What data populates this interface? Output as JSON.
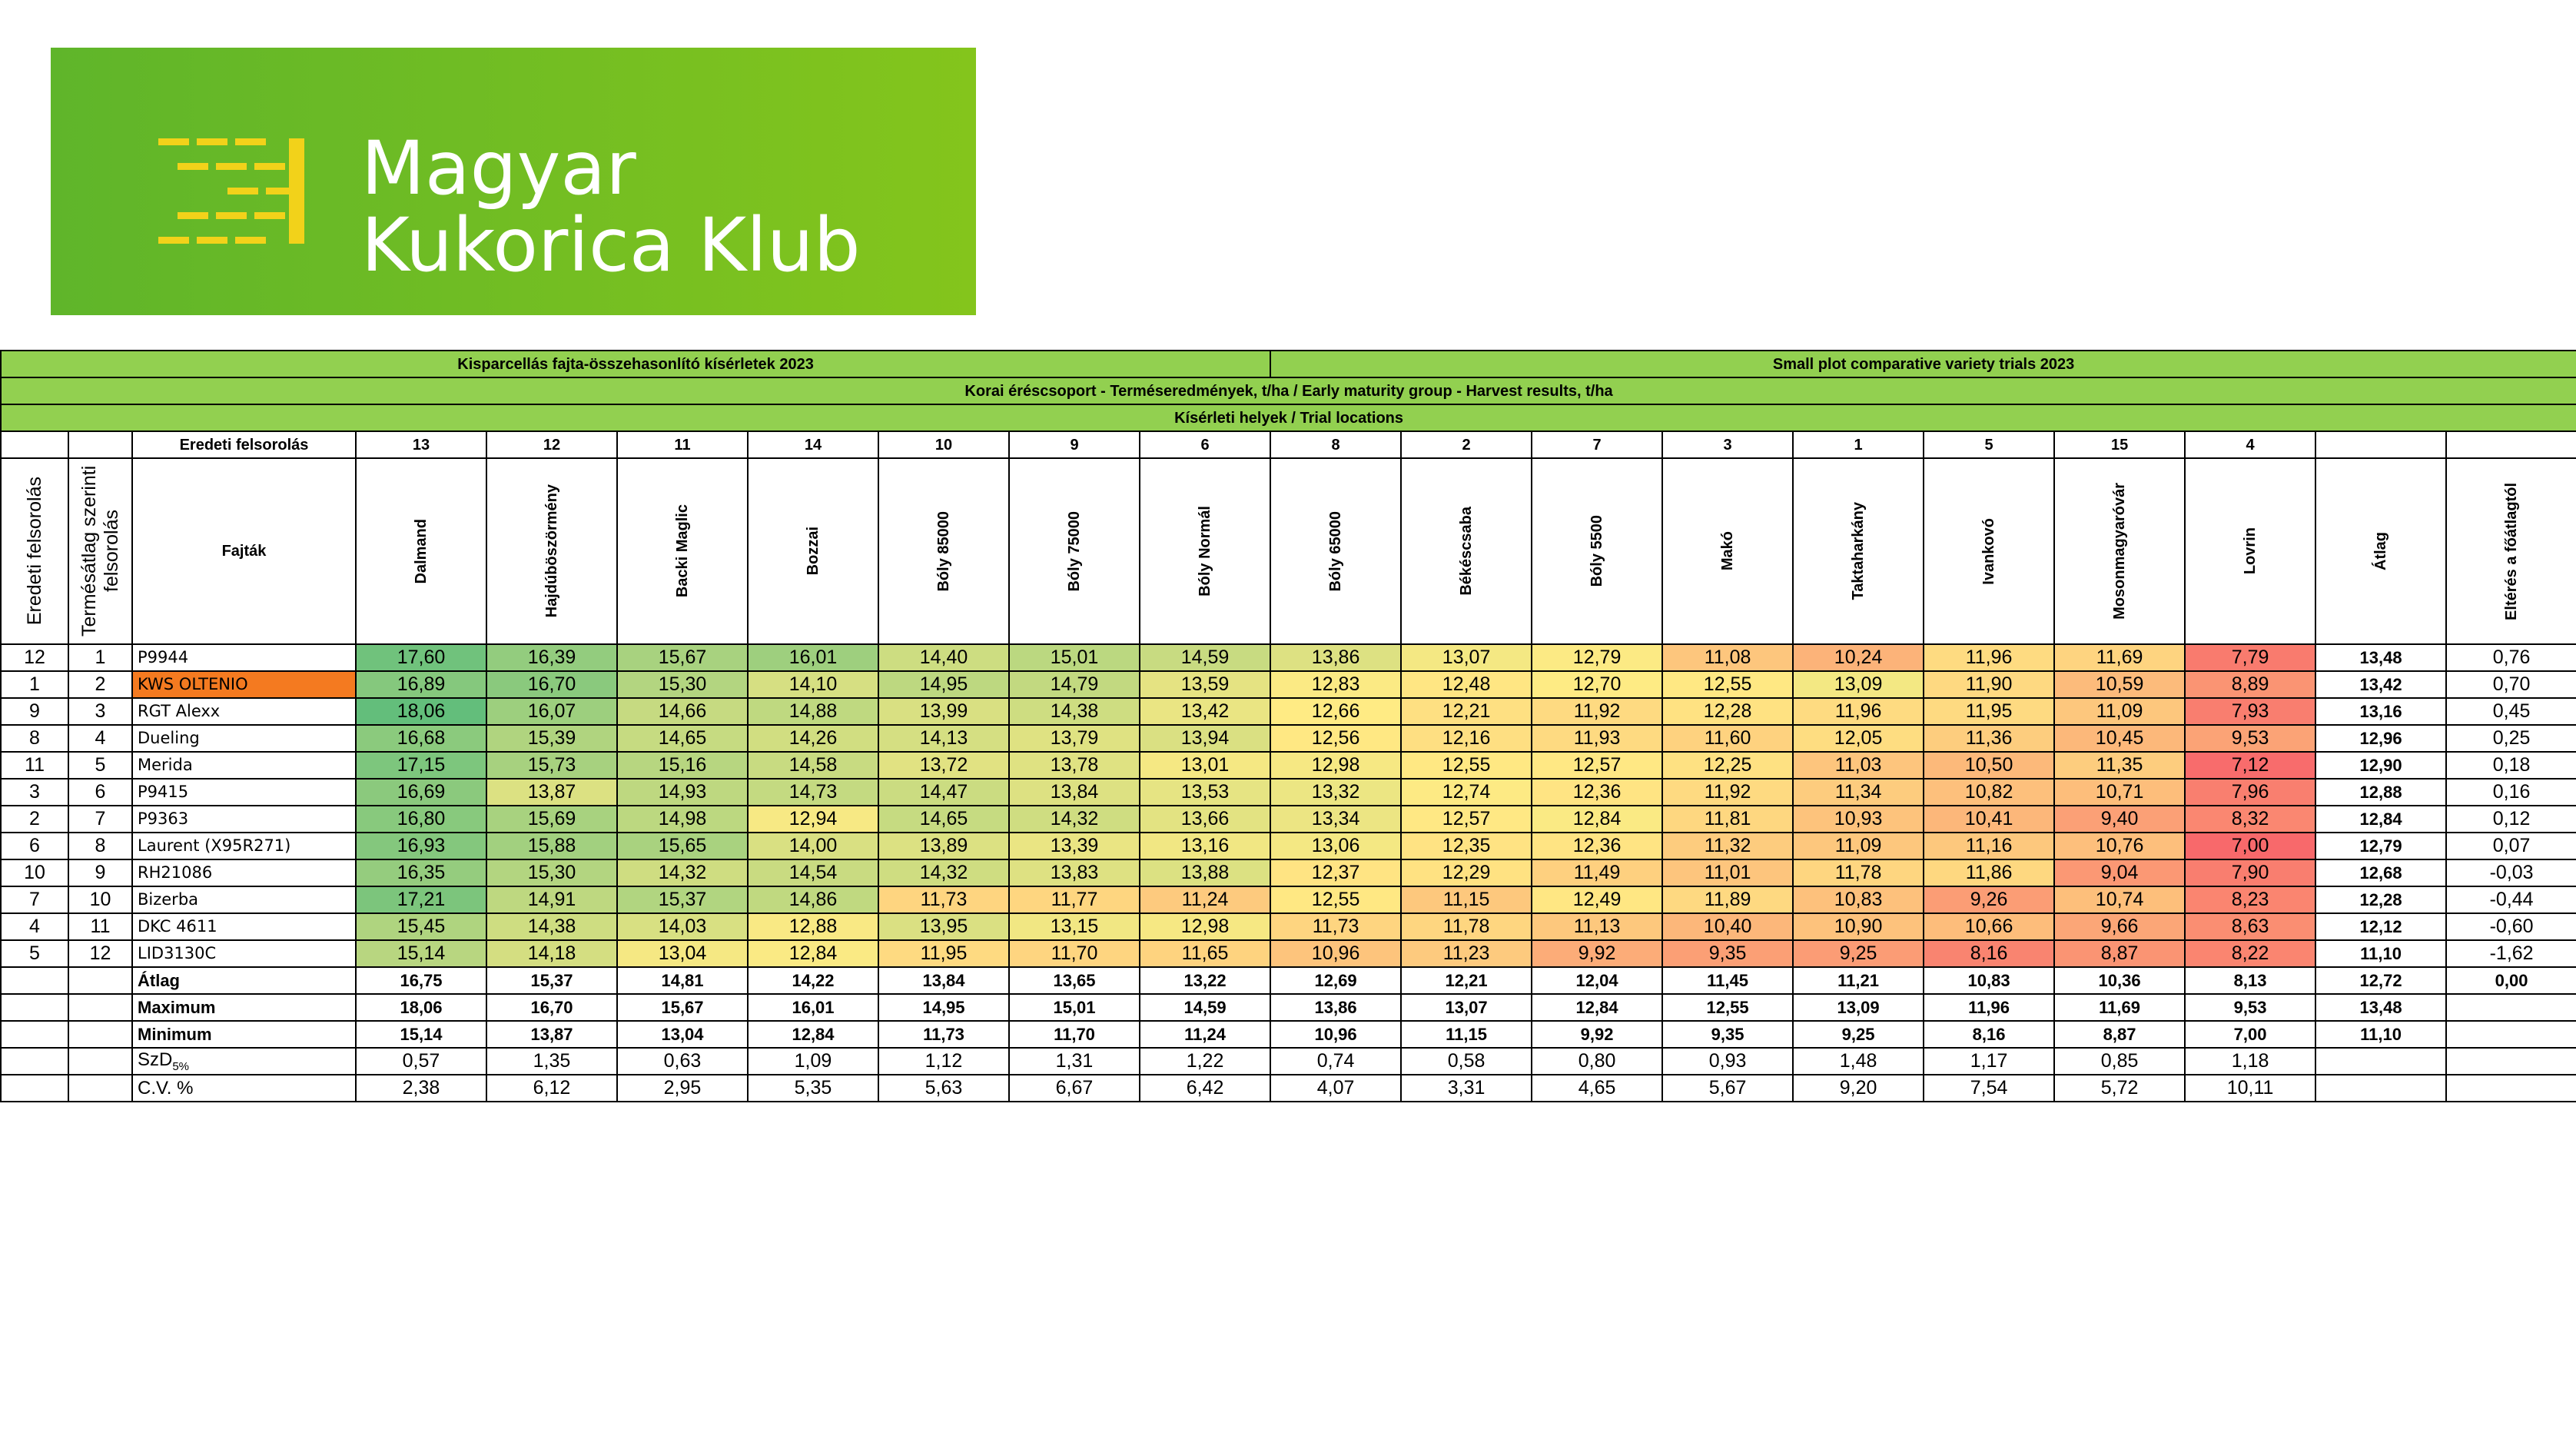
{
  "logo": {
    "line1": "Magyar",
    "line2": "Kukorica Klub"
  },
  "table": {
    "title_hu": "Kisparcellás fajta-összehasonlító kísérletek 2023",
    "title_en": "Small plot comparative variety trials 2023",
    "subtitle": "Korai éréscsoport - Terméseredmények, t/ha / Early maturity group - Harvest results, t/ha",
    "locations_title": "Kísérleti helyek / Trial locations",
    "original_order_label": "Eredeti felsorolás",
    "location_numbers": [
      "13",
      "12",
      "11",
      "14",
      "10",
      "9",
      "6",
      "8",
      "2",
      "7",
      "3",
      "1",
      "5",
      "15",
      "4"
    ],
    "headers": {
      "original": "Eredeti felsorolás",
      "rank": "Termésátlag szerinti felsorolás",
      "variety": "Fajták",
      "locations": [
        "Dalmand",
        "Hajdúböszörmény",
        "Backi Maglic",
        "Bozzai",
        "Bóly 85000",
        "Bóly 75000",
        "Bóly Normál",
        "Bóly 65000",
        "Békéscsaba",
        "Bóly 5500",
        "Makó",
        "Taktaharkány",
        "Ivankovó",
        "Mosonmagyaróvár",
        "Lovrin"
      ],
      "mean": "Átlag",
      "deviation": "Eltérés a főátlagtól"
    },
    "rows": [
      {
        "original": "12",
        "rank": "1",
        "name": "P9944",
        "values": [
          "17,60",
          "16,39",
          "15,67",
          "16,01",
          "14,40",
          "15,01",
          "14,59",
          "13,86",
          "13,07",
          "12,79",
          "11,08",
          "10,24",
          "11,96",
          "11,69",
          "7,79"
        ],
        "mean": "13,48",
        "deviation": "0,76"
      },
      {
        "original": "1",
        "rank": "2",
        "name": "KWS OLTENIO",
        "highlight_color": "#f47a20",
        "values": [
          "16,89",
          "16,70",
          "15,30",
          "14,10",
          "14,95",
          "14,79",
          "13,59",
          "12,83",
          "12,48",
          "12,70",
          "12,55",
          "13,09",
          "11,90",
          "10,59",
          "8,89"
        ],
        "mean": "13,42",
        "deviation": "0,70"
      },
      {
        "original": "9",
        "rank": "3",
        "name": "RGT Alexx",
        "values": [
          "18,06",
          "16,07",
          "14,66",
          "14,88",
          "13,99",
          "14,38",
          "13,42",
          "12,66",
          "12,21",
          "11,92",
          "12,28",
          "11,96",
          "11,95",
          "11,09",
          "7,93"
        ],
        "mean": "13,16",
        "deviation": "0,45"
      },
      {
        "original": "8",
        "rank": "4",
        "name": "Dueling",
        "values": [
          "16,68",
          "15,39",
          "14,65",
          "14,26",
          "14,13",
          "13,79",
          "13,94",
          "12,56",
          "12,16",
          "11,93",
          "11,60",
          "12,05",
          "11,36",
          "10,45",
          "9,53"
        ],
        "mean": "12,96",
        "deviation": "0,25"
      },
      {
        "original": "11",
        "rank": "5",
        "name": "Merida",
        "values": [
          "17,15",
          "15,73",
          "15,16",
          "14,58",
          "13,72",
          "13,78",
          "13,01",
          "12,98",
          "12,55",
          "12,57",
          "12,25",
          "11,03",
          "10,50",
          "11,35",
          "7,12"
        ],
        "mean": "12,90",
        "deviation": "0,18"
      },
      {
        "original": "3",
        "rank": "6",
        "name": "P9415",
        "values": [
          "16,69",
          "13,87",
          "14,93",
          "14,73",
          "14,47",
          "13,84",
          "13,53",
          "13,32",
          "12,74",
          "12,36",
          "11,92",
          "11,34",
          "10,82",
          "10,71",
          "7,96"
        ],
        "mean": "12,88",
        "deviation": "0,16"
      },
      {
        "original": "2",
        "rank": "7",
        "name": "P9363",
        "values": [
          "16,80",
          "15,69",
          "14,98",
          "12,94",
          "14,65",
          "14,32",
          "13,66",
          "13,34",
          "12,57",
          "12,84",
          "11,81",
          "10,93",
          "10,41",
          "9,40",
          "8,32"
        ],
        "mean": "12,84",
        "deviation": "0,12"
      },
      {
        "original": "6",
        "rank": "8",
        "name": "Laurent (X95R271)",
        "values": [
          "16,93",
          "15,88",
          "15,65",
          "14,00",
          "13,89",
          "13,39",
          "13,16",
          "13,06",
          "12,35",
          "12,36",
          "11,32",
          "11,09",
          "11,16",
          "10,76",
          "7,00"
        ],
        "mean": "12,79",
        "deviation": "0,07"
      },
      {
        "original": "10",
        "rank": "9",
        "name": "RH21086",
        "values": [
          "16,35",
          "15,30",
          "14,32",
          "14,54",
          "14,32",
          "13,83",
          "13,88",
          "12,37",
          "12,29",
          "11,49",
          "11,01",
          "11,78",
          "11,86",
          "9,04",
          "7,90"
        ],
        "mean": "12,68",
        "deviation": "-0,03"
      },
      {
        "original": "7",
        "rank": "10",
        "name": "Bizerba",
        "values": [
          "17,21",
          "14,91",
          "15,37",
          "14,86",
          "11,73",
          "11,77",
          "11,24",
          "12,55",
          "11,15",
          "12,49",
          "11,89",
          "10,83",
          "9,26",
          "10,74",
          "8,23"
        ],
        "mean": "12,28",
        "deviation": "-0,44"
      },
      {
        "original": "4",
        "rank": "11",
        "name": "DKC 4611",
        "values": [
          "15,45",
          "14,38",
          "14,03",
          "12,88",
          "13,95",
          "13,15",
          "12,98",
          "11,73",
          "11,78",
          "11,13",
          "10,40",
          "10,90",
          "10,66",
          "9,66",
          "8,63"
        ],
        "mean": "12,12",
        "deviation": "-0,60"
      },
      {
        "original": "5",
        "rank": "12",
        "name": "LID3130C",
        "values": [
          "15,14",
          "14,18",
          "13,04",
          "12,84",
          "11,95",
          "11,70",
          "11,65",
          "10,96",
          "11,23",
          "9,92",
          "9,35",
          "9,25",
          "8,16",
          "8,87",
          "8,22"
        ],
        "mean": "11,10",
        "deviation": "-1,62"
      }
    ],
    "summary": [
      {
        "label": "Átlag",
        "bold": true,
        "values": [
          "16,75",
          "15,37",
          "14,81",
          "14,22",
          "13,84",
          "13,65",
          "13,22",
          "12,69",
          "12,21",
          "12,04",
          "11,45",
          "11,21",
          "10,83",
          "10,36",
          "8,13"
        ],
        "mean": "12,72",
        "deviation": "0,00"
      },
      {
        "label": "Maximum",
        "bold": true,
        "values": [
          "18,06",
          "16,70",
          "15,67",
          "16,01",
          "14,95",
          "15,01",
          "14,59",
          "13,86",
          "13,07",
          "12,84",
          "12,55",
          "13,09",
          "11,96",
          "11,69",
          "9,53"
        ],
        "mean": "13,48"
      },
      {
        "label": "Minimum",
        "bold": true,
        "values": [
          "15,14",
          "13,87",
          "13,04",
          "12,84",
          "11,73",
          "11,70",
          "11,24",
          "10,96",
          "11,15",
          "9,92",
          "9,35",
          "9,25",
          "8,16",
          "8,87",
          "7,00"
        ],
        "mean": "11,10"
      },
      {
        "label": "SzD",
        "sub": "5%",
        "values": [
          "0,57",
          "1,35",
          "0,63",
          "1,09",
          "1,12",
          "1,31",
          "1,22",
          "0,74",
          "0,58",
          "0,80",
          "0,93",
          "1,48",
          "1,17",
          "0,85",
          "1,18"
        ]
      },
      {
        "label": "C.V. %",
        "values": [
          "2,38",
          "6,12",
          "2,95",
          "5,35",
          "5,63",
          "6,67",
          "6,42",
          "4,07",
          "3,31",
          "4,65",
          "5,67",
          "9,20",
          "7,54",
          "5,72",
          "10,11"
        ]
      }
    ]
  }
}
